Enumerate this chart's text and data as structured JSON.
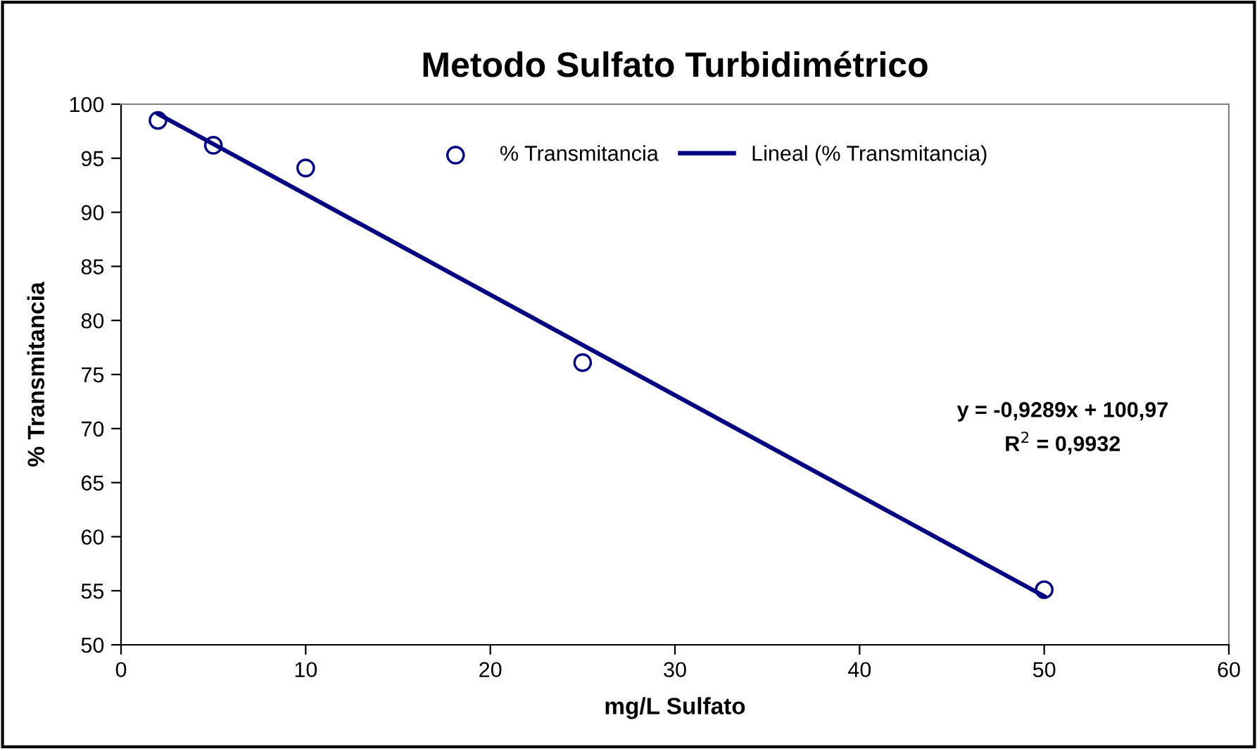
{
  "chart_data": {
    "type": "scatter",
    "title": "Metodo Sulfato Turbidimétrico",
    "xlabel": "mg/L Sulfato",
    "ylabel": "% Transmitancia",
    "series": [
      {
        "name": "% Transmitancia",
        "color": "#000080",
        "marker": "circle",
        "x": [
          2,
          5,
          10,
          25,
          50
        ],
        "values": [
          98.5,
          96.2,
          94.1,
          76.1,
          55.1
        ]
      },
      {
        "name": "Lineal (% Transmitancia)",
        "type": "line",
        "color": "#000080",
        "line_style": "solid",
        "x": [
          2,
          50
        ],
        "values": [
          99.1,
          54.5
        ]
      }
    ],
    "annotations": [
      "y = -0,9289x + 100,97\nR$^{2}$ = 0,9932"
    ],
    "xlim": [
      0,
      60
    ],
    "xticks": [
      0,
      10,
      20,
      30,
      40,
      50,
      60
    ],
    "ylim": [
      50,
      100
    ],
    "yticks": [
      50,
      55,
      60,
      65,
      70,
      75,
      80,
      85,
      90,
      95,
      100
    ],
    "grid": false,
    "legend": "top"
  }
}
